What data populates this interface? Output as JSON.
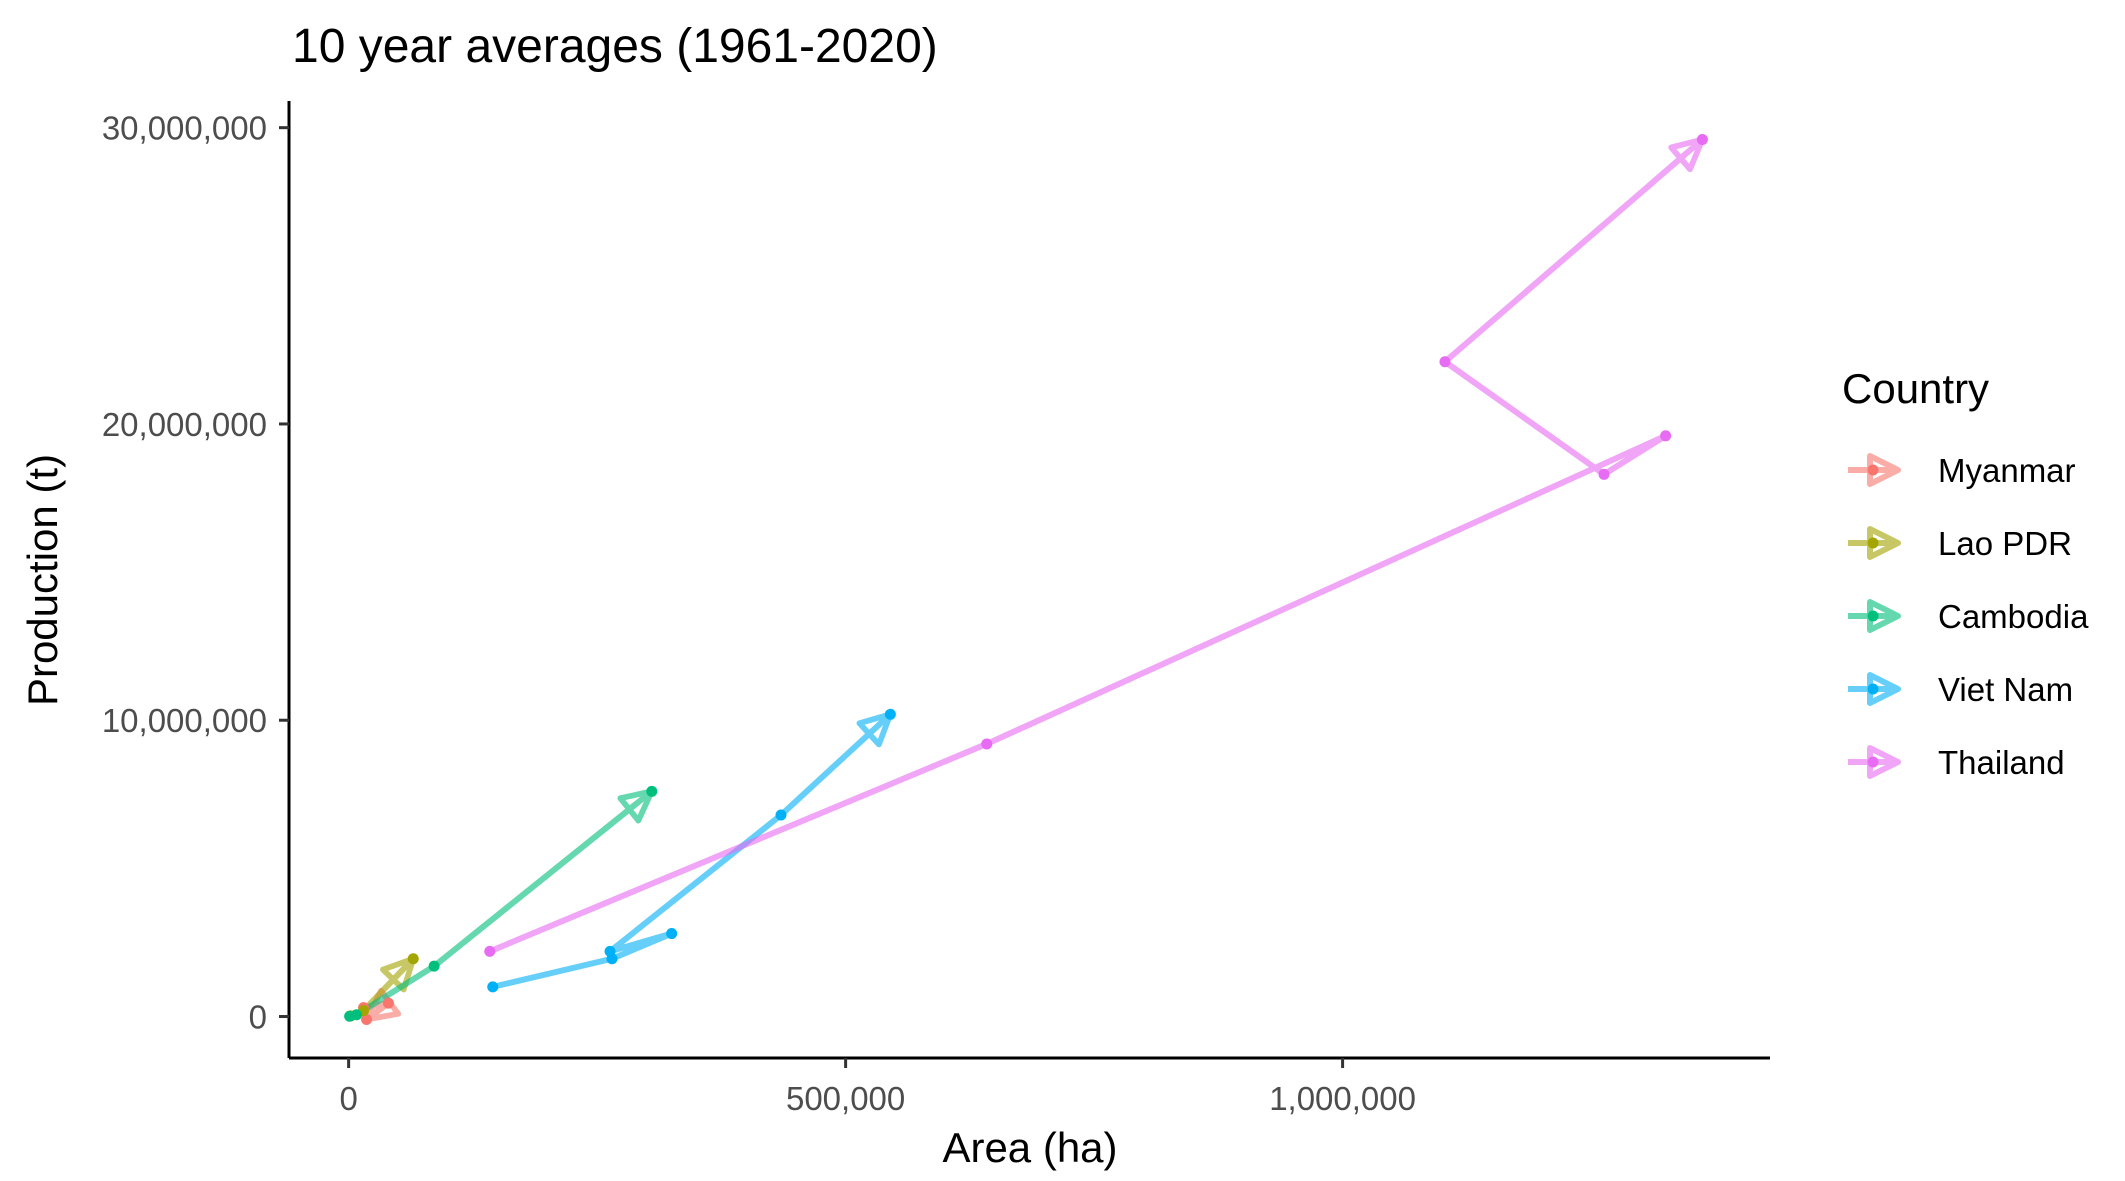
{
  "chart_data": {
    "type": "line",
    "title": "10 year averages (1961-2020)",
    "xlabel": "Area (ha)",
    "ylabel": "Production (t)",
    "xlim": [
      -60000,
      1430000
    ],
    "ylim": [
      -1400000,
      30900000
    ],
    "x_ticks": [
      0,
      500000,
      1000000
    ],
    "x_tick_labels": [
      "0",
      "500,000",
      "1,000,000"
    ],
    "y_ticks": [
      0,
      10000000,
      20000000,
      30000000
    ],
    "y_tick_labels": [
      "0",
      "10,000,000",
      "20,000,000",
      "30,000,000"
    ],
    "grid": false,
    "legend": {
      "title": "Country",
      "position": "right"
    },
    "series": [
      {
        "name": "Myanmar",
        "color": "#F8766D",
        "points": [
          {
            "x": 15000,
            "y": 300000
          },
          {
            "x": 40000,
            "y": 450000
          },
          {
            "x": 18000,
            "y": -100000
          }
        ]
      },
      {
        "name": "Lao PDR",
        "color": "#A3A500",
        "points": [
          {
            "x": 2000,
            "y": 20000
          },
          {
            "x": 15000,
            "y": 200000
          },
          {
            "x": 65000,
            "y": 1950000
          }
        ]
      },
      {
        "name": "Cambodia",
        "color": "#00BF7D",
        "points": [
          {
            "x": 1000,
            "y": 10000
          },
          {
            "x": 8000,
            "y": 60000
          },
          {
            "x": 86000,
            "y": 1700000
          },
          {
            "x": 305000,
            "y": 7600000
          }
        ]
      },
      {
        "name": "Viet Nam",
        "color": "#00B0F6",
        "points": [
          {
            "x": 145000,
            "y": 1000000
          },
          {
            "x": 265000,
            "y": 1950000
          },
          {
            "x": 325000,
            "y": 2800000
          },
          {
            "x": 263000,
            "y": 2200000
          },
          {
            "x": 435000,
            "y": 6800000
          },
          {
            "x": 545000,
            "y": 10200000
          }
        ]
      },
      {
        "name": "Thailand",
        "color": "#E76BF3",
        "points": [
          {
            "x": 142000,
            "y": 2200000
          },
          {
            "x": 642000,
            "y": 9200000
          },
          {
            "x": 1325000,
            "y": 19600000
          },
          {
            "x": 1263000,
            "y": 18300000
          },
          {
            "x": 1103000,
            "y": 22100000
          },
          {
            "x": 1362000,
            "y": 29600000
          }
        ]
      }
    ]
  }
}
